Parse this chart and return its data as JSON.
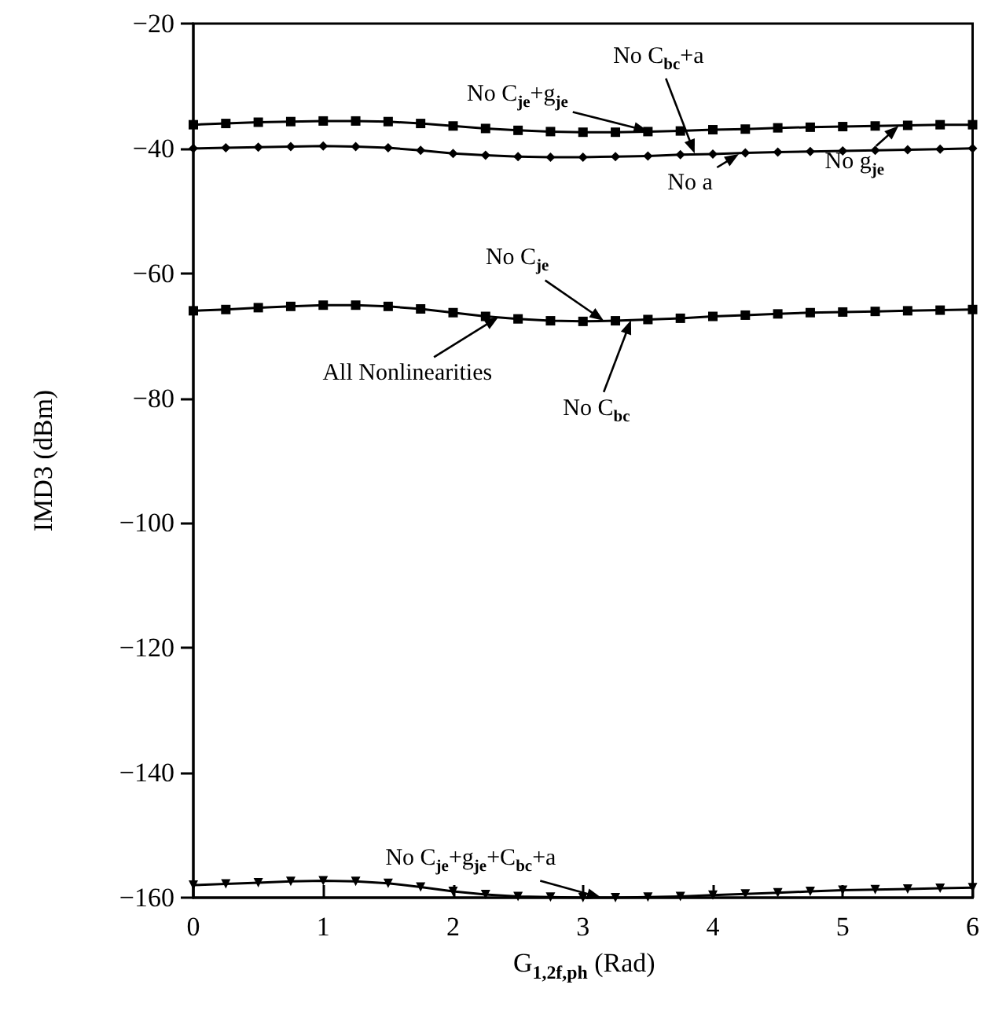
{
  "chart_data": {
    "type": "line",
    "xlabel": "G$_{1,2f,ph}$ (Rad)",
    "ylabel": "IMD3 (dBm)",
    "xlim": [
      0,
      6
    ],
    "xticks": [
      0,
      1,
      2,
      3,
      4,
      5,
      6
    ],
    "ylim": [
      -160,
      -20
    ],
    "yticks": [
      -160,
      -140,
      -120,
      -100,
      -80,
      -60,
      -40,
      -20
    ],
    "grid": false,
    "x": [
      0,
      0.25,
      0.5,
      0.75,
      1,
      1.25,
      1.5,
      1.75,
      2,
      2.25,
      2.5,
      2.75,
      3,
      3.25,
      3.5,
      3.75,
      4,
      4.25,
      4.5,
      4.75,
      5,
      5.25,
      5.5,
      5.75,
      6
    ],
    "series": [
      {
        "color": "#000000",
        "marker": "square",
        "values": [
          -36.2,
          -36.0,
          -35.8,
          -35.7,
          -35.6,
          -35.6,
          -35.7,
          -36.0,
          -36.4,
          -36.8,
          -37.1,
          -37.3,
          -37.4,
          -37.4,
          -37.3,
          -37.2,
          -37.0,
          -36.9,
          -36.7,
          -36.6,
          -36.5,
          -36.4,
          -36.3,
          -36.2,
          -36.2
        ]
      },
      {
        "color": "#000000",
        "marker": "diamond",
        "values": [
          -40.0,
          -39.9,
          -39.8,
          -39.7,
          -39.6,
          -39.7,
          -39.9,
          -40.3,
          -40.8,
          -41.1,
          -41.3,
          -41.4,
          -41.4,
          -41.3,
          -41.2,
          -41.0,
          -40.9,
          -40.7,
          -40.6,
          -40.5,
          -40.4,
          -40.3,
          -40.2,
          -40.1,
          -40.0
        ]
      },
      {
        "color": "#000000",
        "marker": "square",
        "values": [
          -66.0,
          -65.8,
          -65.5,
          -65.3,
          -65.1,
          -65.1,
          -65.3,
          -65.7,
          -66.3,
          -66.9,
          -67.3,
          -67.6,
          -67.7,
          -67.6,
          -67.4,
          -67.2,
          -66.9,
          -66.7,
          -66.5,
          -66.3,
          -66.2,
          -66.1,
          -66.0,
          -65.9,
          -65.8
        ]
      },
      {
        "color": "#000000",
        "marker": "triangle",
        "values": [
          -158.0,
          -157.8,
          -157.6,
          -157.4,
          -157.3,
          -157.4,
          -157.7,
          -158.3,
          -159.0,
          -159.5,
          -159.8,
          -159.9,
          -160,
          -160,
          -159.9,
          -159.8,
          -159.6,
          -159.4,
          -159.2,
          -159.0,
          -158.8,
          -158.7,
          -158.6,
          -158.5,
          -158.4
        ]
      }
    ],
    "annotations": [
      {
        "text": "No C$_{bc}$+a",
        "x": 3.86,
        "y": -40.8
      },
      {
        "text": "No C$_{je}$+g$_{je}$",
        "x": 3.5,
        "y": -37.2
      },
      {
        "text": "No a",
        "x": 4.2,
        "y": -40.9
      },
      {
        "text": "No g$_{je}$",
        "x": 5.43,
        "y": -36.4
      },
      {
        "text": "No C$_{je}$",
        "x": 3.16,
        "y": -67.6
      },
      {
        "text": "All Nonlinearities",
        "x": 2.35,
        "y": -67.0
      },
      {
        "text": "No C$_{bc}$",
        "x": 3.37,
        "y": -67.5
      },
      {
        "text": "No C$_{je}$+g$_{je}$+C$_{bc}$+a",
        "x": 3.14,
        "y": -160
      }
    ]
  }
}
